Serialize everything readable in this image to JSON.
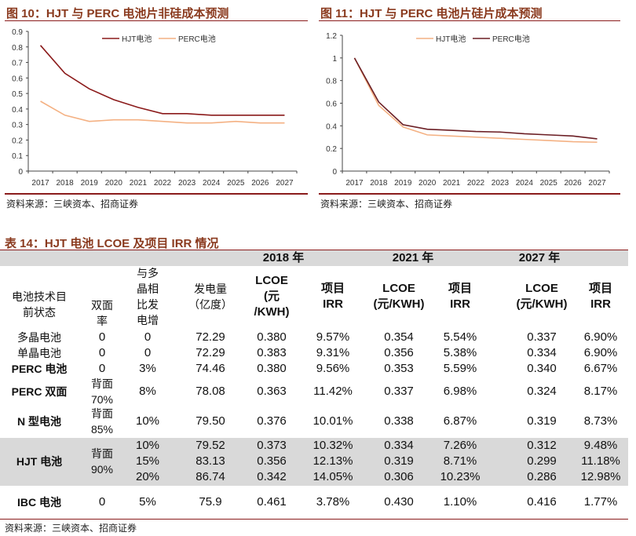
{
  "figure10": {
    "title": "图 10：HJT 与 PERC 电池片非硅成本预测",
    "source": "资料来源：三峡资本、招商证券"
  },
  "figure11": {
    "title": "图 11：HJT 与 PERC 电池片硅片成本预测",
    "source": "资料来源：三峡资本、招商证券"
  },
  "chart_data": [
    {
      "type": "line",
      "title": "HJT 与 PERC 电池片非硅成本预测",
      "x": [
        "2017",
        "2018",
        "2019",
        "2020",
        "2021",
        "2022",
        "2023",
        "2024",
        "2025",
        "2026",
        "2027"
      ],
      "ylim": [
        0,
        0.9
      ],
      "yticks": [
        "0",
        "0.1",
        "0.2",
        "0.3",
        "0.4",
        "0.5",
        "0.6",
        "0.7",
        "0.8",
        "0.9"
      ],
      "legend": "top-center",
      "series": [
        {
          "name": "HJT电池",
          "color": "#8b1a1a",
          "values": [
            0.81,
            0.63,
            0.53,
            0.46,
            0.41,
            0.37,
            0.37,
            0.36,
            0.36,
            0.36,
            0.36
          ]
        },
        {
          "name": "PERC电池",
          "color": "#f4b183",
          "values": [
            0.45,
            0.36,
            0.32,
            0.33,
            0.33,
            0.32,
            0.31,
            0.31,
            0.32,
            0.31,
            0.31
          ]
        }
      ]
    },
    {
      "type": "line",
      "title": "HJT 与 PERC 电池片硅片成本预测",
      "x": [
        "2017",
        "2018",
        "2019",
        "2020",
        "2021",
        "2022",
        "2023",
        "2024",
        "2025",
        "2026",
        "2027"
      ],
      "ylim": [
        0,
        1.2
      ],
      "yticks": [
        "0",
        "0.2",
        "0.4",
        "0.6",
        "0.8",
        "1",
        "1.2"
      ],
      "legend": "top-center",
      "series": [
        {
          "name": "HJT电池",
          "color": "#f4b183",
          "values": [
            1.0,
            0.58,
            0.39,
            0.32,
            0.31,
            0.3,
            0.29,
            0.28,
            0.27,
            0.26,
            0.255
          ]
        },
        {
          "name": "PERC电池",
          "color": "#6b1e24",
          "values": [
            1.0,
            0.61,
            0.41,
            0.37,
            0.36,
            0.35,
            0.345,
            0.33,
            0.32,
            0.31,
            0.285
          ]
        }
      ]
    }
  ],
  "table": {
    "title": "表 14：HJT 电池 LCOE 及项目 IRR 情况",
    "years": [
      "2018 年",
      "2021 年",
      "2027 年"
    ],
    "headers": [
      "电池技术目\n前状态",
      "双面\n率",
      "与多\n晶相\n比发\n电增",
      "发电量\n（亿度）",
      "LCOE\n(元\n/KWH)",
      "项目\nIRR",
      "LCOE\n(元/KWH)",
      "项目\nIRR",
      "LCOE\n(元/KWH)",
      "项目\nIRR"
    ],
    "rows": [
      [
        "多晶电池",
        "0",
        "0",
        "72.29",
        "0.380",
        "9.57%",
        "0.354",
        "5.54%",
        "0.337",
        "6.90%"
      ],
      [
        "单晶电池",
        "0",
        "0",
        "72.29",
        "0.383",
        "9.31%",
        "0.356",
        "5.38%",
        "0.334",
        "6.90%"
      ],
      [
        "PERC 电池",
        "0",
        "3%",
        "74.46",
        "0.380",
        "9.56%",
        "0.353",
        "5.59%",
        "0.340",
        "6.67%"
      ],
      [
        "PERC 双面",
        "背面\n70%",
        "8%",
        "78.08",
        "0.363",
        "11.42%",
        "0.337",
        "6.98%",
        "0.324",
        "8.17%"
      ],
      [
        "N 型电池",
        "背面\n85%",
        "10%",
        "79.50",
        "0.376",
        "10.01%",
        "0.338",
        "6.87%",
        "0.319",
        "8.73%"
      ],
      [
        "HJT 电池",
        "背面\n90%",
        "10%\n15%\n20%",
        "79.52\n83.13\n86.74",
        "0.373\n0.356\n0.342",
        "10.32%\n12.13%\n14.05%",
        "0.334\n0.319\n0.306",
        "7.26%\n8.71%\n10.23%",
        "0.312\n0.299\n0.286",
        "9.48%\n11.18%\n12.98%"
      ],
      [
        "IBC 电池",
        "0",
        "5%",
        "75.9",
        "0.461",
        "3.78%",
        "0.430",
        "1.10%",
        "0.416",
        "1.77%"
      ]
    ],
    "source": "资料来源：三峡资本、招商证券"
  }
}
